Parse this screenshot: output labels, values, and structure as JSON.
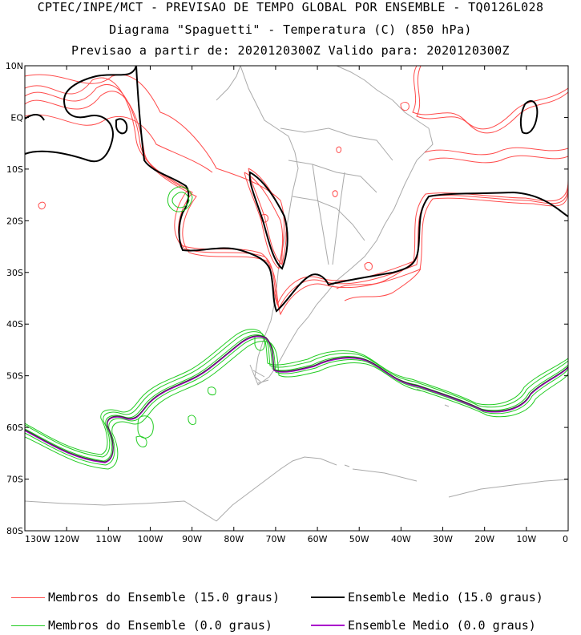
{
  "title": {
    "line1": "CPTEC/INPE/MCT - PREVISAO DE TEMPO GLOBAL POR ENSEMBLE - TQ0126L028",
    "line2": "Diagrama \"Spaguetti\" - Temperatura (C) (850 hPa)",
    "line3": "Previsao a partir de: 2020120300Z  Valido para: 2020120300Z"
  },
  "axes": {
    "lat_labels": [
      "10N",
      "EQ",
      "10S",
      "20S",
      "30S",
      "40S",
      "50S",
      "60S",
      "70S",
      "80S"
    ],
    "lon_labels": [
      "130W",
      "120W",
      "110W",
      "100W",
      "90W",
      "80W",
      "70W",
      "60W",
      "50W",
      "40W",
      "30W",
      "20W",
      "10W",
      "0"
    ]
  },
  "legend": {
    "members_15": "Membros do Ensemble (15.0 graus)",
    "mean_15": "Ensemble Medio (15.0 graus)",
    "members_0": "Membros do Ensemble (0.0 graus)",
    "mean_0": "Ensemble Medio (0.0 graus)"
  },
  "colors": {
    "members_15": "#ff4b4b",
    "mean_15": "#000000",
    "members_0": "#22cc22",
    "mean_0": "#aa00cc",
    "coastline": "#aaaaaa"
  }
}
